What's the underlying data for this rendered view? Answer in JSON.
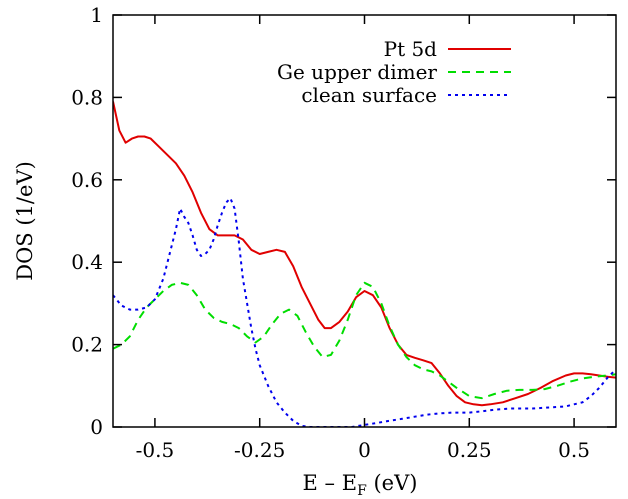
{
  "chart_data": {
    "type": "line",
    "title": "",
    "xlabel": "E – E",
    "xlabel_subscript": "F",
    "xlabel_unit": " (eV)",
    "ylabel": "DOS (1/eV)",
    "xlim": [
      -0.6,
      0.6
    ],
    "ylim": [
      0,
      1
    ],
    "xticks": [
      -0.5,
      -0.25,
      0,
      0.25,
      0.5
    ],
    "xtick_labels": [
      "-0.5",
      "-0.25",
      "0",
      "0.25",
      "0.5"
    ],
    "yticks": [
      0,
      0.2,
      0.4,
      0.6,
      0.8,
      1
    ],
    "ytick_labels": [
      "0",
      "0.2",
      "0.4",
      "0.6",
      "0.8",
      "1"
    ],
    "grid": false,
    "legend_position": "top-right",
    "series": [
      {
        "name": "Pt 5d",
        "color": "#e00000",
        "dash": "solid",
        "x": [
          -0.6,
          -0.585,
          -0.57,
          -0.555,
          -0.54,
          -0.525,
          -0.51,
          -0.49,
          -0.47,
          -0.45,
          -0.43,
          -0.41,
          -0.39,
          -0.37,
          -0.35,
          -0.33,
          -0.31,
          -0.29,
          -0.27,
          -0.25,
          -0.23,
          -0.21,
          -0.19,
          -0.17,
          -0.15,
          -0.13,
          -0.11,
          -0.095,
          -0.08,
          -0.06,
          -0.04,
          -0.02,
          0,
          0.02,
          0.04,
          0.06,
          0.08,
          0.1,
          0.12,
          0.14,
          0.16,
          0.18,
          0.2,
          0.22,
          0.24,
          0.26,
          0.28,
          0.3,
          0.33,
          0.36,
          0.39,
          0.42,
          0.45,
          0.48,
          0.5,
          0.52,
          0.54,
          0.56,
          0.58,
          0.6
        ],
        "y": [
          0.79,
          0.72,
          0.69,
          0.7,
          0.705,
          0.705,
          0.7,
          0.68,
          0.66,
          0.64,
          0.61,
          0.57,
          0.52,
          0.48,
          0.465,
          0.465,
          0.465,
          0.455,
          0.43,
          0.42,
          0.425,
          0.43,
          0.425,
          0.39,
          0.34,
          0.3,
          0.26,
          0.24,
          0.24,
          0.255,
          0.28,
          0.315,
          0.33,
          0.32,
          0.29,
          0.24,
          0.2,
          0.175,
          0.168,
          0.162,
          0.155,
          0.13,
          0.1,
          0.075,
          0.06,
          0.055,
          0.053,
          0.055,
          0.06,
          0.07,
          0.08,
          0.095,
          0.112,
          0.125,
          0.13,
          0.13,
          0.128,
          0.125,
          0.122,
          0.12
        ]
      },
      {
        "name": "Ge upper dimer",
        "color": "#00dd00",
        "dash": "8,6",
        "x": [
          -0.6,
          -0.58,
          -0.56,
          -0.54,
          -0.52,
          -0.5,
          -0.48,
          -0.46,
          -0.44,
          -0.42,
          -0.4,
          -0.38,
          -0.36,
          -0.34,
          -0.32,
          -0.3,
          -0.28,
          -0.26,
          -0.24,
          -0.22,
          -0.2,
          -0.18,
          -0.16,
          -0.14,
          -0.12,
          -0.1,
          -0.08,
          -0.06,
          -0.04,
          -0.02,
          0,
          0.02,
          0.04,
          0.06,
          0.08,
          0.1,
          0.12,
          0.14,
          0.16,
          0.18,
          0.2,
          0.22,
          0.25,
          0.28,
          0.31,
          0.34,
          0.37,
          0.4,
          0.43,
          0.46,
          0.49,
          0.52,
          0.55,
          0.58,
          0.6
        ],
        "y": [
          0.19,
          0.2,
          0.22,
          0.26,
          0.29,
          0.31,
          0.33,
          0.345,
          0.35,
          0.345,
          0.32,
          0.285,
          0.265,
          0.255,
          0.25,
          0.24,
          0.22,
          0.205,
          0.22,
          0.25,
          0.275,
          0.285,
          0.27,
          0.23,
          0.195,
          0.17,
          0.175,
          0.21,
          0.26,
          0.32,
          0.35,
          0.34,
          0.3,
          0.245,
          0.2,
          0.17,
          0.15,
          0.14,
          0.135,
          0.125,
          0.11,
          0.095,
          0.075,
          0.07,
          0.08,
          0.088,
          0.09,
          0.09,
          0.092,
          0.1,
          0.11,
          0.118,
          0.122,
          0.125,
          0.128
        ]
      },
      {
        "name": "clean surface",
        "color": "#0000ee",
        "dash": "3,4",
        "x": [
          -0.6,
          -0.58,
          -0.56,
          -0.54,
          -0.52,
          -0.5,
          -0.48,
          -0.465,
          -0.45,
          -0.44,
          -0.43,
          -0.42,
          -0.41,
          -0.4,
          -0.39,
          -0.38,
          -0.37,
          -0.36,
          -0.35,
          -0.34,
          -0.33,
          -0.32,
          -0.31,
          -0.3,
          -0.29,
          -0.28,
          -0.27,
          -0.26,
          -0.25,
          -0.23,
          -0.21,
          -0.19,
          -0.17,
          -0.15,
          -0.13,
          -0.11,
          -0.09,
          -0.06,
          -0.03,
          0,
          0.03,
          0.06,
          0.09,
          0.12,
          0.15,
          0.18,
          0.21,
          0.25,
          0.28,
          0.31,
          0.35,
          0.4,
          0.45,
          0.48,
          0.5,
          0.52,
          0.54,
          0.56,
          0.58,
          0.6
        ],
        "y": [
          0.32,
          0.295,
          0.285,
          0.285,
          0.29,
          0.31,
          0.36,
          0.42,
          0.48,
          0.53,
          0.51,
          0.495,
          0.465,
          0.43,
          0.415,
          0.42,
          0.43,
          0.455,
          0.49,
          0.52,
          0.545,
          0.555,
          0.53,
          0.45,
          0.36,
          0.3,
          0.24,
          0.19,
          0.15,
          0.1,
          0.06,
          0.035,
          0.015,
          0.003,
          0,
          0,
          0,
          0,
          0,
          0.005,
          0.01,
          0.015,
          0.02,
          0.025,
          0.03,
          0.033,
          0.035,
          0.035,
          0.038,
          0.042,
          0.045,
          0.045,
          0.048,
          0.05,
          0.055,
          0.06,
          0.075,
          0.095,
          0.12,
          0.14
        ]
      }
    ]
  }
}
